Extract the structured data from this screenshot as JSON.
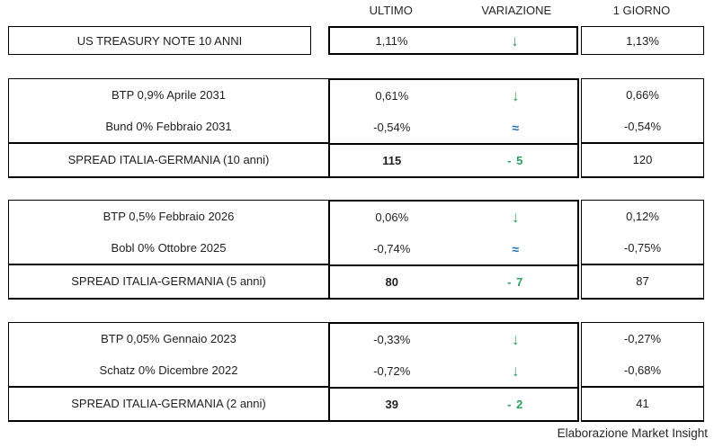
{
  "colors": {
    "positive_green": "#2aa15d",
    "neutral_blue": "#1f70b8",
    "border_black": "#000000",
    "text": "#1f1f1f"
  },
  "header": {
    "ultimo": "ULTIMO",
    "variazione": "VARIAZIONE",
    "giorno": "1 GIORNO"
  },
  "us_treasury": {
    "label": "US TREASURY NOTE 10 ANNI",
    "ultimo": "1,11%",
    "var_glyph": "↓",
    "var_type": "down",
    "giorno": "1,13%"
  },
  "groups": [
    {
      "bonds": [
        {
          "label": "BTP 0,9% Aprile 2031",
          "ultimo": "0,61%",
          "var_glyph": "↓",
          "var_type": "down",
          "giorno": "0,66%"
        },
        {
          "label": "Bund 0% Febbraio 2031",
          "ultimo": "-0,54%",
          "var_glyph": "≈",
          "var_type": "flat",
          "giorno": "-0,54%"
        }
      ],
      "spread": {
        "label": "SPREAD ITALIA-GERMANIA (10 anni)",
        "ultimo": "115",
        "variazione": "- 5",
        "giorno": "120"
      }
    },
    {
      "bonds": [
        {
          "label": "BTP 0,5% Febbraio 2026",
          "ultimo": "0,06%",
          "var_glyph": "↓",
          "var_type": "down",
          "giorno": "0,12%"
        },
        {
          "label": "Bobl 0% Ottobre 2025",
          "ultimo": "-0,74%",
          "var_glyph": "≈",
          "var_type": "flat",
          "giorno": "-0,75%"
        }
      ],
      "spread": {
        "label": "SPREAD ITALIA-GERMANIA (5 anni)",
        "ultimo": "80",
        "variazione": "- 7",
        "giorno": "87"
      }
    },
    {
      "bonds": [
        {
          "label": "BTP 0,05% Gennaio 2023",
          "ultimo": "-0,33%",
          "var_glyph": "↓",
          "var_type": "down",
          "giorno": "-0,27%"
        },
        {
          "label": "Schatz 0% Dicembre 2022",
          "ultimo": "-0,72%",
          "var_glyph": "↓",
          "var_type": "down",
          "giorno": "-0,68%"
        }
      ],
      "spread": {
        "label": "SPREAD ITALIA-GERMANIA (2 anni)",
        "ultimo": "39",
        "variazione": "- 2",
        "giorno": "41"
      }
    }
  ],
  "footer": "Elaborazione Market Insight"
}
